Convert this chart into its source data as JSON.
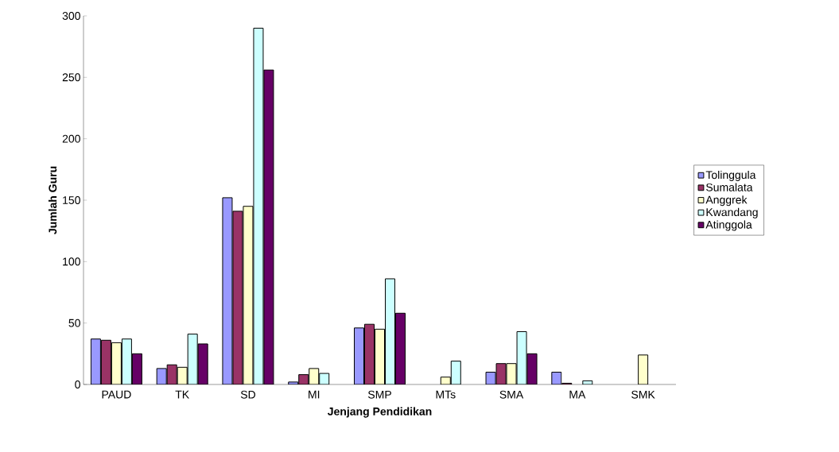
{
  "chart_data": {
    "type": "bar",
    "xlabel": "Jenjang Pendidikan",
    "ylabel": "Jumlah Guru",
    "categories": [
      "PAUD",
      "TK",
      "SD",
      "MI",
      "SMP",
      "MTs",
      "SMA",
      "MA",
      "SMK"
    ],
    "series": [
      {
        "name": "Tolinggula",
        "color": "#9999ff",
        "values": [
          37,
          13,
          152,
          2,
          46,
          null,
          10,
          10,
          null
        ]
      },
      {
        "name": "Sumalata",
        "color": "#993366",
        "values": [
          36,
          16,
          141,
          8,
          49,
          null,
          17,
          1,
          null
        ]
      },
      {
        "name": "Anggrek",
        "color": "#ffffcc",
        "values": [
          34,
          14,
          145,
          13,
          45,
          6,
          17,
          null,
          24
        ]
      },
      {
        "name": "Kwandang",
        "color": "#ccffff",
        "values": [
          37,
          41,
          290,
          9,
          86,
          19,
          43,
          3,
          null
        ]
      },
      {
        "name": "Atinggola",
        "color": "#660066",
        "values": [
          25,
          33,
          256,
          null,
          58,
          null,
          25,
          null,
          null
        ]
      }
    ],
    "ylim": [
      0,
      300
    ],
    "yticks": [
      0,
      50,
      100,
      150,
      200,
      250,
      300
    ],
    "legend": "right",
    "grid": false
  }
}
